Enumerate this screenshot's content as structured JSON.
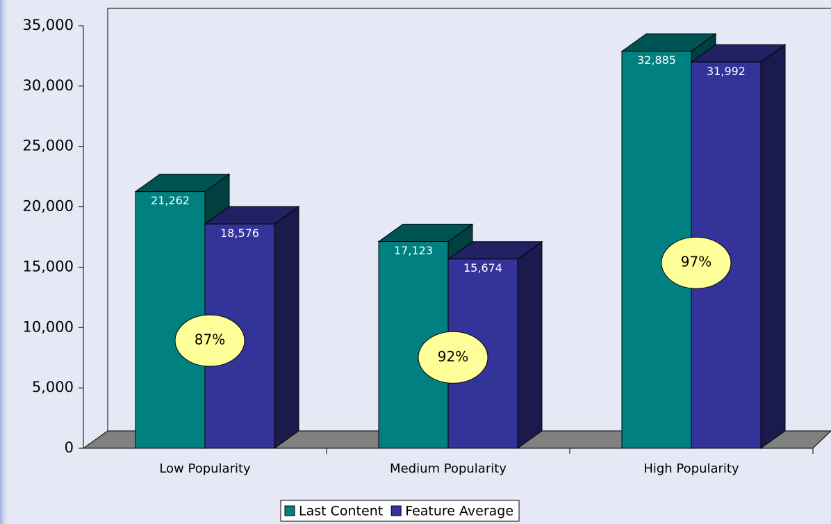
{
  "chart_data": {
    "type": "bar3d",
    "categories": [
      "Low Popularity",
      "Medium Popularity",
      "High Popularity"
    ],
    "series": [
      {
        "name": "Last Content",
        "color": "#008080",
        "values": [
          21262,
          17123,
          32885
        ],
        "value_labels": [
          "21,262",
          "17,123",
          "32,885"
        ]
      },
      {
        "name": "Feature Average",
        "color": "#333399",
        "values": [
          18576,
          15674,
          31992
        ],
        "value_labels": [
          "18,576",
          "15,674",
          "31,992"
        ]
      }
    ],
    "annotations": [
      "87%",
      "92%",
      "97%"
    ],
    "ylim": [
      0,
      35000
    ],
    "yticks": [
      0,
      {
        "value": 5000,
        "label": "5,000"
      },
      {
        "value": 10000,
        "label": "10,000"
      },
      {
        "value": 15000,
        "label": "15,000"
      },
      {
        "value": 20000,
        "label": "20,000"
      },
      {
        "value": 25000,
        "label": "25,000"
      },
      {
        "value": 30000,
        "label": "30,000"
      },
      {
        "value": 35000,
        "label": "35,000"
      }
    ],
    "legend": "bottom"
  }
}
